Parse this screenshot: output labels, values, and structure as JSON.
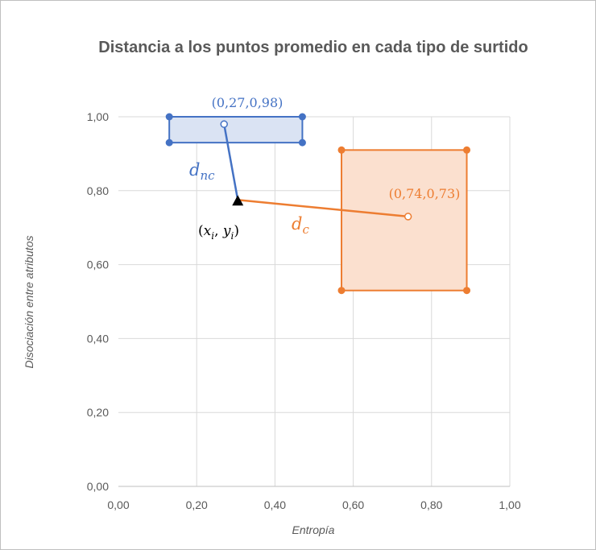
{
  "colors": {
    "blue": "#4472C4",
    "blue_fill": "#DAE3F3",
    "orange": "#ED7D31",
    "orange_fill": "#FBE0CF",
    "grid": "#D9D9D9",
    "text": "#595959",
    "black": "#000000"
  },
  "chart_data": {
    "type": "scatter",
    "title": "Distancia a los puntos promedio en cada tipo de surtido",
    "xlabel": "Entropía",
    "ylabel": "Disociación entre atributos",
    "xlim": [
      0,
      1
    ],
    "ylim": [
      0,
      1
    ],
    "x_ticks": [
      "0,00",
      "0,20",
      "0,40",
      "0,60",
      "0,80",
      "1,00"
    ],
    "y_ticks": [
      "0,00",
      "0,20",
      "0,40",
      "0,60",
      "0,80",
      "1,00"
    ],
    "grid": true,
    "series": [
      {
        "color": "blue",
        "rectangle": {
          "x_min": 0.13,
          "x_max": 0.47,
          "y_min": 0.93,
          "y_max": 1.0
        },
        "corner_points": [
          {
            "x": 0.13,
            "y": 1.0
          },
          {
            "x": 0.47,
            "y": 1.0
          },
          {
            "x": 0.13,
            "y": 0.93
          },
          {
            "x": 0.47,
            "y": 0.93
          }
        ],
        "mean_point": {
          "x": 0.27,
          "y": 0.98
        },
        "mean_label": "(0,27,0,98)"
      },
      {
        "color": "orange",
        "rectangle": {
          "x_min": 0.57,
          "x_max": 0.89,
          "y_min": 0.53,
          "y_max": 0.91
        },
        "corner_points": [
          {
            "x": 0.57,
            "y": 0.91
          },
          {
            "x": 0.89,
            "y": 0.91
          },
          {
            "x": 0.57,
            "y": 0.53
          },
          {
            "x": 0.89,
            "y": 0.53
          }
        ],
        "mean_point": {
          "x": 0.74,
          "y": 0.73
        },
        "mean_label": "(0,74,0,73)"
      }
    ],
    "reference_point": {
      "x": 0.305,
      "y": 0.775
    },
    "annotations": {
      "point": {
        "base1": "x",
        "sub1": "i",
        "base2": "y",
        "sub2": "i"
      },
      "blue_distance": {
        "base": "d",
        "sub": "nc"
      },
      "orange_distance": {
        "base": "d",
        "sub": "c"
      }
    }
  }
}
